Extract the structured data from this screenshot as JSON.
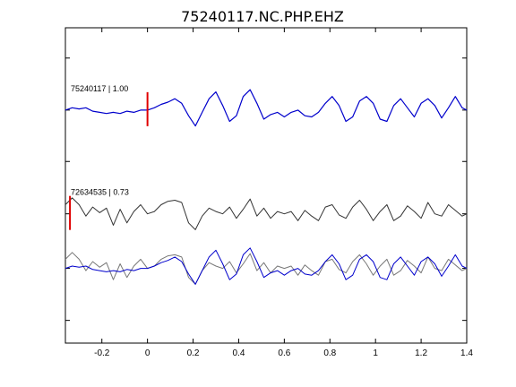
{
  "chart_data": {
    "type": "line",
    "title": "75240117.NC.PHP.EHZ",
    "xlabel": "",
    "ylabel": "",
    "xlim": [
      -0.36,
      1.4
    ],
    "ylim": [
      0,
      1
    ],
    "grid": false,
    "x_ticks": [
      -0.2,
      0,
      0.2,
      0.4,
      0.6,
      0.8,
      1,
      1.2,
      1.4
    ],
    "x_tick_labels": [
      "-0.2",
      "0",
      "0.2",
      "0.4",
      "0.6",
      "0.8",
      "1",
      "1.2",
      "1.4"
    ],
    "y_ticks": [
      0.072,
      0.237,
      0.41,
      0.576,
      0.739,
      0.904
    ],
    "trace_labels": [
      "75240117 | 1.00",
      "72634535 | 0.73"
    ],
    "pick_markers": [
      {
        "trace": "75240117",
        "x": 0.0,
        "color": "#e00000"
      },
      {
        "trace": "72634535",
        "x": -0.34,
        "color": "#e00000"
      }
    ],
    "series": [
      {
        "name": "75240117",
        "color": "#0000cc",
        "offset": 0.739,
        "x": [
          -0.36,
          -0.33,
          -0.3,
          -0.27,
          -0.24,
          -0.21,
          -0.18,
          -0.15,
          -0.12,
          -0.09,
          -0.06,
          -0.03,
          0.0,
          0.03,
          0.06,
          0.09,
          0.12,
          0.15,
          0.18,
          0.21,
          0.24,
          0.27,
          0.3,
          0.33,
          0.36,
          0.39,
          0.42,
          0.45,
          0.48,
          0.51,
          0.54,
          0.57,
          0.6,
          0.63,
          0.66,
          0.69,
          0.72,
          0.75,
          0.78,
          0.81,
          0.84,
          0.87,
          0.9,
          0.93,
          0.96,
          0.99,
          1.02,
          1.05,
          1.08,
          1.11,
          1.14,
          1.17,
          1.2,
          1.23,
          1.26,
          1.29,
          1.32,
          1.35,
          1.38,
          1.4
        ],
        "y": [
          0.0,
          0.02,
          0.01,
          0.02,
          -0.01,
          -0.02,
          -0.03,
          -0.02,
          -0.03,
          -0.01,
          -0.02,
          0.0,
          0.0,
          0.02,
          0.05,
          0.07,
          0.1,
          0.06,
          -0.05,
          -0.14,
          -0.02,
          0.1,
          0.16,
          0.04,
          -0.1,
          -0.05,
          0.12,
          0.18,
          0.06,
          -0.08,
          -0.04,
          -0.02,
          -0.06,
          -0.02,
          0.0,
          -0.05,
          -0.06,
          -0.02,
          0.06,
          0.12,
          0.04,
          -0.1,
          -0.06,
          0.08,
          0.12,
          0.06,
          -0.08,
          -0.1,
          0.04,
          0.1,
          0.02,
          -0.06,
          0.06,
          0.1,
          0.04,
          -0.07,
          0.02,
          0.12,
          0.02,
          0.0
        ]
      },
      {
        "name": "72634535",
        "color": "#333333",
        "offset": 0.41,
        "x": [
          -0.36,
          -0.33,
          -0.3,
          -0.27,
          -0.24,
          -0.21,
          -0.18,
          -0.15,
          -0.12,
          -0.09,
          -0.06,
          -0.03,
          0.0,
          0.03,
          0.06,
          0.09,
          0.12,
          0.15,
          0.18,
          0.21,
          0.24,
          0.27,
          0.3,
          0.33,
          0.36,
          0.39,
          0.42,
          0.45,
          0.48,
          0.51,
          0.54,
          0.57,
          0.6,
          0.63,
          0.66,
          0.69,
          0.72,
          0.75,
          0.78,
          0.81,
          0.84,
          0.87,
          0.9,
          0.93,
          0.96,
          0.99,
          1.02,
          1.05,
          1.08,
          1.11,
          1.14,
          1.17,
          1.2,
          1.23,
          1.26,
          1.29,
          1.32,
          1.35,
          1.38,
          1.4
        ],
        "y": [
          0.08,
          0.14,
          0.08,
          -0.02,
          0.06,
          0.01,
          0.05,
          -0.1,
          0.04,
          -0.08,
          0.02,
          0.08,
          0.0,
          0.02,
          0.08,
          0.11,
          0.12,
          0.1,
          -0.08,
          -0.14,
          -0.02,
          0.05,
          0.02,
          0.0,
          0.06,
          -0.04,
          0.04,
          0.13,
          -0.02,
          0.05,
          -0.04,
          0.02,
          0.0,
          0.02,
          -0.06,
          0.03,
          -0.02,
          -0.06,
          0.06,
          0.08,
          -0.01,
          -0.04,
          0.06,
          0.12,
          0.04,
          -0.06,
          0.02,
          0.08,
          -0.06,
          -0.02,
          0.07,
          0.02,
          -0.04,
          0.1,
          0.0,
          -0.02,
          0.08,
          0.03,
          -0.02,
          0.0
        ]
      },
      {
        "name": "75240117-overlay",
        "color": "#0000cc",
        "offset": 0.237,
        "ref": "75240117"
      },
      {
        "name": "72634535-overlay",
        "color": "#777777",
        "offset": 0.237,
        "ref": "72634535"
      }
    ]
  }
}
